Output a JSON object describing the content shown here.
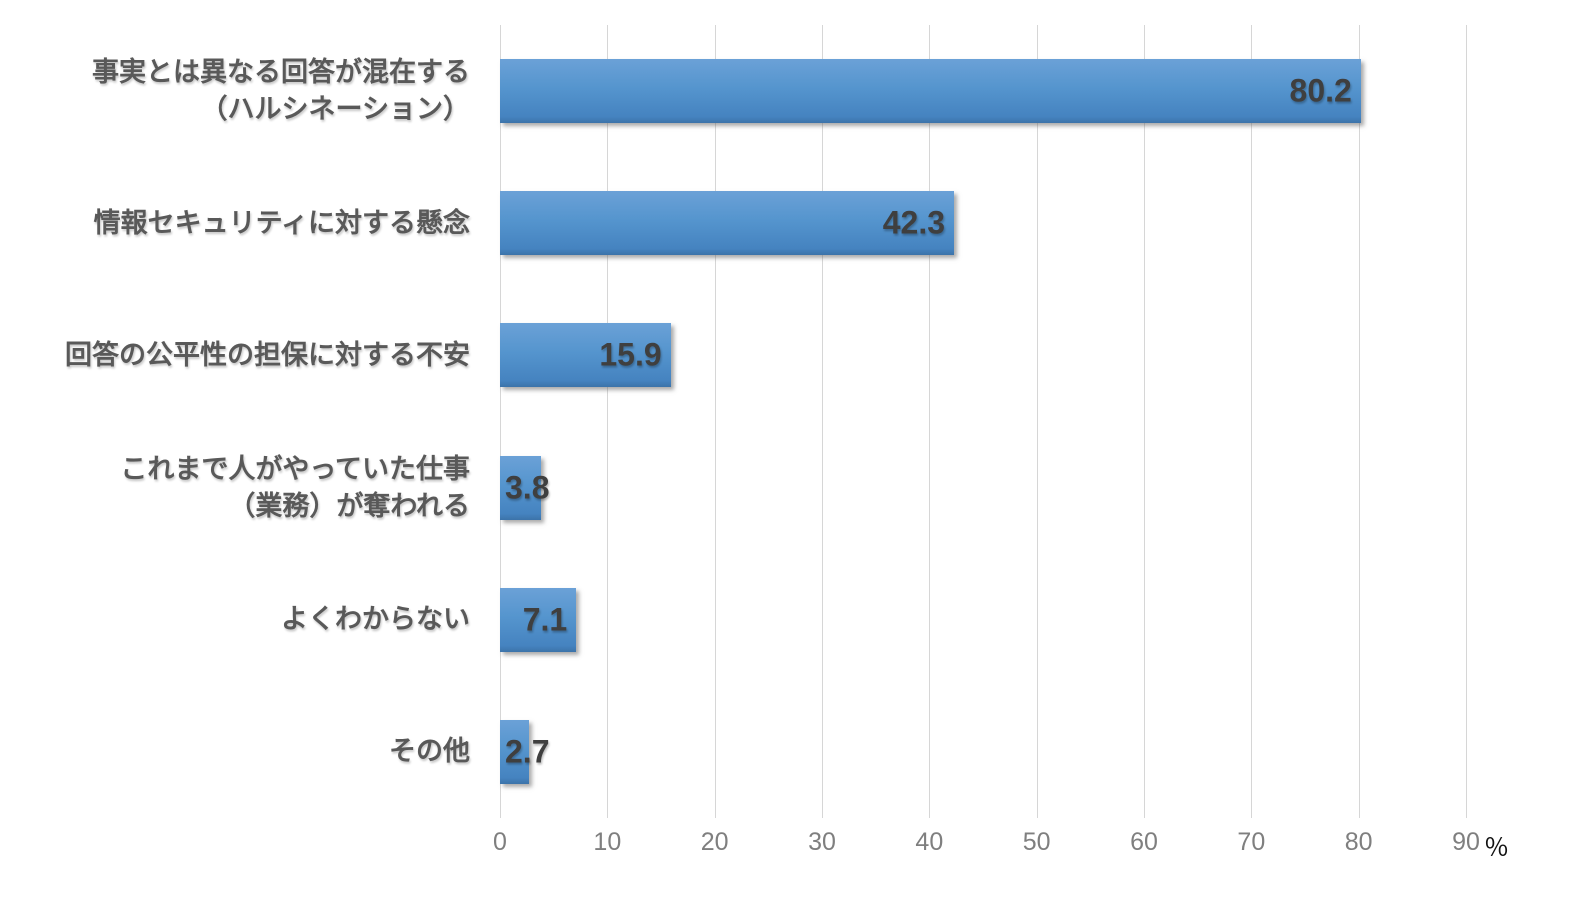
{
  "chart_data": {
    "type": "bar",
    "orientation": "horizontal",
    "title": "",
    "categories": [
      "事実とは異なる回答が混在する\n（ハルシネーション）",
      "情報セキュリティに対する懸念",
      "回答の公平性の担保に対する不安",
      "これまで人がやっていた仕事\n（業務）が奪われる",
      "よくわからない",
      "その他"
    ],
    "values": [
      80.2,
      42.3,
      15.9,
      3.8,
      7.1,
      2.7
    ],
    "value_labels": [
      "80.2",
      "42.3",
      "15.9",
      "3.8",
      "7.1",
      "2.7"
    ],
    "xlim": [
      0,
      90
    ],
    "x_ticks": [
      0,
      10,
      20,
      30,
      40,
      50,
      60,
      70,
      80,
      90
    ],
    "unit": "％",
    "grid": "vertical-gridlines-on",
    "legend": "none",
    "colors": {
      "bar_top": "#6ba1d7",
      "bar_bottom": "#3c73a9",
      "gridline": "#d6d6d6",
      "category_label": "#595959",
      "value_label": "#3f3f3f",
      "tick_label": "#7f7f7f",
      "unit_label": "#111111",
      "background": "#ffffff"
    }
  }
}
